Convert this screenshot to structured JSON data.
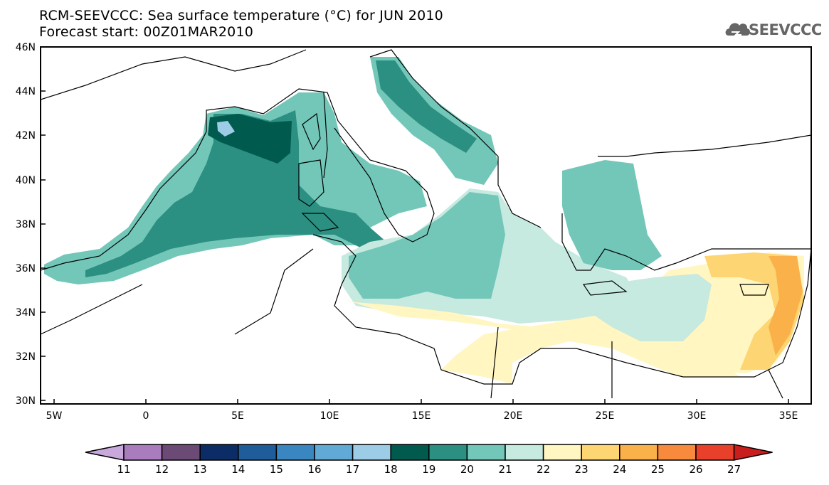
{
  "title": "RCM-SEEVCCC: Sea surface temperature (°C) for JUN 2010",
  "subtitle": "Forecast start: 00Z01MAR2010",
  "logo_text": "SEEVCCC",
  "map": {
    "lon_range": [
      -5.5,
      36.5
    ],
    "lat_range": [
      30,
      46
    ],
    "lat_ticks": [
      "46N",
      "44N",
      "42N",
      "40N",
      "38N",
      "36N",
      "34N",
      "32N",
      "30N"
    ],
    "lon_ticks": [
      "5W",
      "0",
      "5E",
      "10E",
      "15E",
      "20E",
      "25E",
      "30E",
      "35E"
    ]
  },
  "colorbar": {
    "labels": [
      "11",
      "12",
      "13",
      "14",
      "15",
      "16",
      "17",
      "18",
      "19",
      "20",
      "21",
      "22",
      "23",
      "24",
      "25",
      "26",
      "27"
    ],
    "colors": [
      "#c9a8dc",
      "#a97cbe",
      "#6b4a75",
      "#0c2c66",
      "#1f5d9a",
      "#3a86c0",
      "#62aad6",
      "#9ccce6",
      "#005a4e",
      "#2b8f82",
      "#73c7b8",
      "#c6e9e0",
      "#fff6c2",
      "#fdd572",
      "#fbb14a",
      "#f78a3c",
      "#e8402a",
      "#c81e1e"
    ]
  }
}
